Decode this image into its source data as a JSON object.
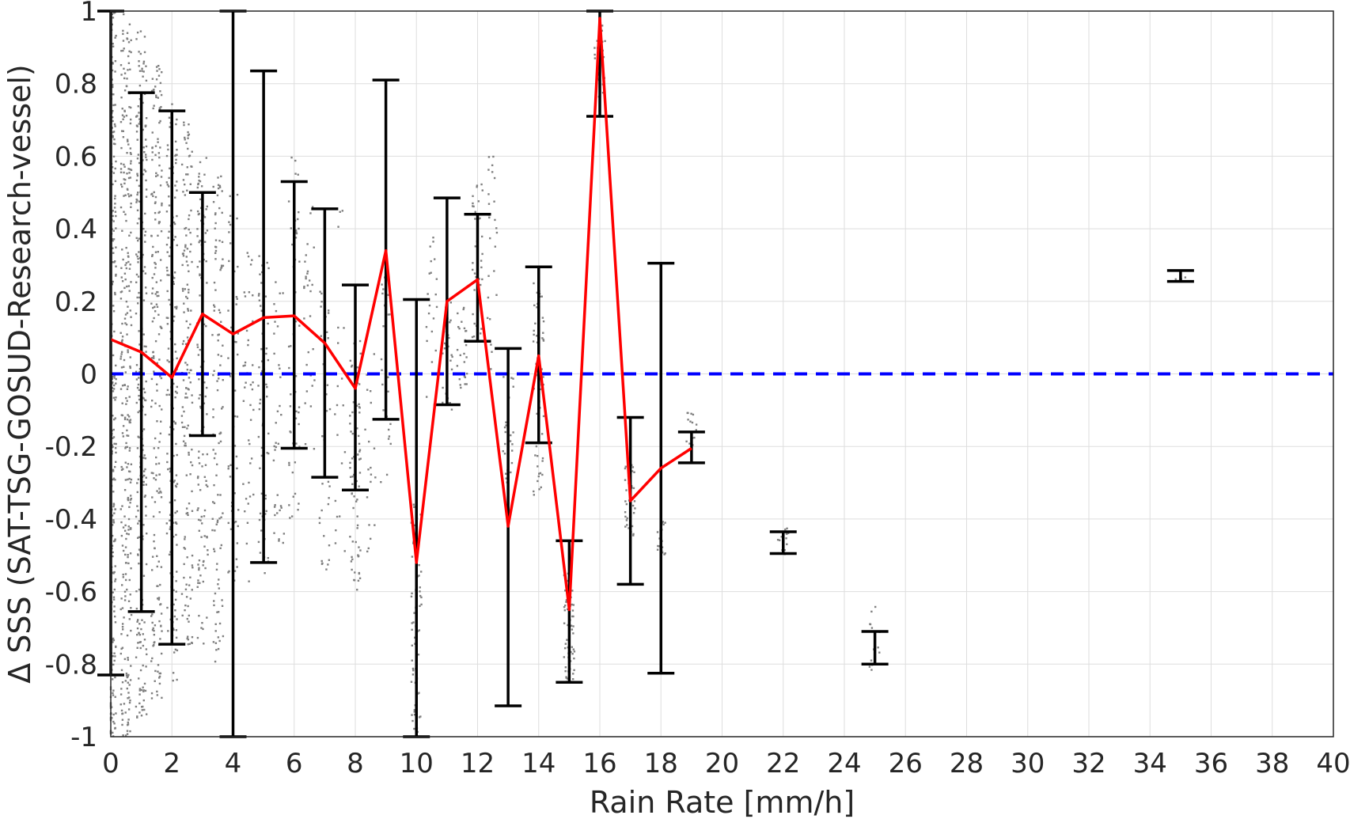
{
  "chart_data": {
    "type": "line",
    "xlabel": "Rain Rate [mm/h]",
    "ylabel": "Δ SSS (SAT-TSG-GOSUD-Research-vessel)",
    "xlim": [
      0,
      40
    ],
    "ylim": [
      -1,
      1
    ],
    "xticks": [
      "0",
      "2",
      "4",
      "6",
      "8",
      "10",
      "12",
      "14",
      "16",
      "18",
      "20",
      "22",
      "24",
      "26",
      "28",
      "30",
      "32",
      "34",
      "36",
      "38",
      "40"
    ],
    "yticks": [
      "-1",
      "-0.8",
      "-0.6",
      "-0.4",
      "-0.2",
      "0",
      "0.2",
      "0.4",
      "0.6",
      "0.8",
      "1"
    ],
    "grid": true,
    "colors": {
      "mean_line": "#ff0000",
      "zero_line": "#0000ff",
      "error_bars": "#000000",
      "scatter": "#808080"
    },
    "series": [
      {
        "kind": "mean",
        "x": [
          0,
          1,
          2,
          3,
          4,
          5,
          6,
          7,
          8,
          9,
          10,
          11,
          12,
          13,
          14,
          15,
          16,
          17,
          18,
          19
        ],
        "values": [
          0.095,
          0.06,
          -0.01,
          0.165,
          0.11,
          0.155,
          0.16,
          0.085,
          -0.04,
          0.34,
          -0.52,
          0.2,
          0.26,
          -0.42,
          0.05,
          -0.65,
          0.98,
          -0.35,
          -0.26,
          -0.205
        ]
      },
      {
        "kind": "zero_reference",
        "x": [
          0,
          40
        ],
        "values": [
          0,
          0
        ]
      }
    ],
    "error_bars": [
      {
        "x": 0,
        "low": -0.83,
        "high": 1.0
      },
      {
        "x": 1,
        "low": -0.655,
        "high": 0.775
      },
      {
        "x": 2,
        "low": -0.745,
        "high": 0.725
      },
      {
        "x": 3,
        "low": -0.17,
        "high": 0.5
      },
      {
        "x": 4,
        "low": -1.0,
        "high": 1.0
      },
      {
        "x": 5,
        "low": -0.52,
        "high": 0.835
      },
      {
        "x": 6,
        "low": -0.205,
        "high": 0.53
      },
      {
        "x": 7,
        "low": -0.285,
        "high": 0.455
      },
      {
        "x": 8,
        "low": -0.32,
        "high": 0.245
      },
      {
        "x": 9,
        "low": -0.125,
        "high": 0.81
      },
      {
        "x": 10,
        "low": -1.0,
        "high": 0.205
      },
      {
        "x": 11,
        "low": -0.085,
        "high": 0.485
      },
      {
        "x": 12,
        "low": 0.09,
        "high": 0.44
      },
      {
        "x": 13,
        "low": -0.915,
        "high": 0.07
      },
      {
        "x": 14,
        "low": -0.19,
        "high": 0.295
      },
      {
        "x": 15,
        "low": -0.85,
        "high": -0.46
      },
      {
        "x": 16,
        "low": 0.71,
        "high": 1.0
      },
      {
        "x": 17,
        "low": -0.58,
        "high": -0.12
      },
      {
        "x": 18,
        "low": -0.825,
        "high": 0.305
      },
      {
        "x": 19,
        "low": -0.245,
        "high": -0.16
      },
      {
        "x": 22,
        "low": -0.495,
        "high": -0.435
      },
      {
        "x": 25,
        "low": -0.8,
        "high": -0.71
      },
      {
        "x": 35,
        "low": 0.255,
        "high": 0.285
      }
    ],
    "scatter_columns": [
      {
        "x": 0,
        "low": -1.0,
        "high": 1.0,
        "n": 420
      },
      {
        "x": 0.5,
        "low": -1.0,
        "high": 1.0,
        "n": 300
      },
      {
        "x": 1,
        "low": -0.95,
        "high": 0.95,
        "n": 260
      },
      {
        "x": 1.5,
        "low": -0.9,
        "high": 0.85,
        "n": 200
      },
      {
        "x": 2,
        "low": -0.85,
        "high": 0.75,
        "n": 180
      },
      {
        "x": 2.5,
        "low": -0.75,
        "high": 0.7,
        "n": 150
      },
      {
        "x": 3,
        "low": -0.75,
        "high": 0.6,
        "n": 120
      },
      {
        "x": 3.5,
        "low": -0.8,
        "high": 0.55,
        "n": 110
      },
      {
        "x": 4,
        "low": -0.6,
        "high": 0.5,
        "n": 60
      },
      {
        "x": 4.5,
        "low": -0.6,
        "high": 0.35,
        "n": 40
      },
      {
        "x": 5,
        "low": -0.55,
        "high": 0.35,
        "n": 60
      },
      {
        "x": 5.5,
        "low": -0.55,
        "high": 0.3,
        "n": 35
      },
      {
        "x": 6,
        "low": -0.4,
        "high": 0.6,
        "n": 50
      },
      {
        "x": 6.5,
        "low": -0.25,
        "high": 0.5,
        "n": 30
      },
      {
        "x": 7,
        "low": -0.55,
        "high": 0.25,
        "n": 35
      },
      {
        "x": 7.5,
        "low": -0.6,
        "high": 0.45,
        "n": 20
      },
      {
        "x": 8,
        "low": -0.6,
        "high": 0.1,
        "n": 70
      },
      {
        "x": 8.5,
        "low": -0.5,
        "high": 0.2,
        "n": 20
      },
      {
        "x": 9,
        "low": -0.3,
        "high": 0.3,
        "n": 25
      },
      {
        "x": 10,
        "low": -1.0,
        "high": -0.35,
        "n": 60
      },
      {
        "x": 10.5,
        "low": -0.1,
        "high": 0.4,
        "n": 20
      },
      {
        "x": 11,
        "low": -0.1,
        "high": 0.2,
        "n": 30
      },
      {
        "x": 11.5,
        "low": -0.05,
        "high": 0.2,
        "n": 25
      },
      {
        "x": 12,
        "low": 0.1,
        "high": 0.55,
        "n": 40
      },
      {
        "x": 12.5,
        "low": 0.0,
        "high": 0.6,
        "n": 25
      },
      {
        "x": 13,
        "low": -0.3,
        "high": 0.0,
        "n": 25
      },
      {
        "x": 14,
        "low": -0.35,
        "high": 0.25,
        "n": 60
      },
      {
        "x": 15,
        "low": -0.85,
        "high": -0.55,
        "n": 60
      },
      {
        "x": 16,
        "low": 0.75,
        "high": 1.0,
        "n": 25
      },
      {
        "x": 17,
        "low": -0.45,
        "high": -0.25,
        "n": 35
      },
      {
        "x": 18,
        "low": -0.5,
        "high": -0.4,
        "n": 20
      },
      {
        "x": 19,
        "low": -0.2,
        "high": -0.1,
        "n": 15
      },
      {
        "x": 22,
        "low": -0.52,
        "high": -0.42,
        "n": 15
      },
      {
        "x": 25,
        "low": -0.82,
        "high": -0.64,
        "n": 15
      },
      {
        "x": 35,
        "low": 0.25,
        "high": 0.29,
        "n": 6
      }
    ]
  }
}
